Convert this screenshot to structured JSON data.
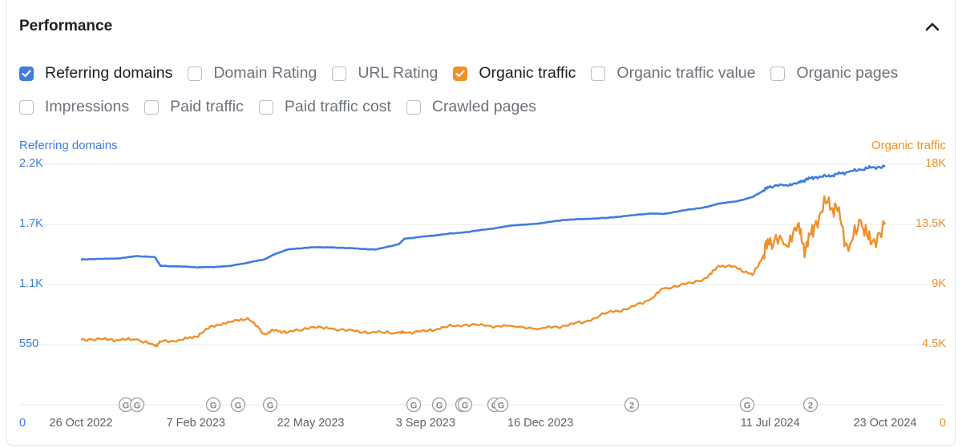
{
  "header": {
    "title": "Performance"
  },
  "toggles": {
    "row1": [
      {
        "label": "Referring domains",
        "checked": true,
        "color": "#3f7ddf"
      },
      {
        "label": "Domain Rating",
        "checked": false
      },
      {
        "label": "URL Rating",
        "checked": false
      },
      {
        "label": "Organic traffic",
        "checked": true,
        "color": "#f0902b"
      },
      {
        "label": "Organic traffic value",
        "checked": false
      },
      {
        "label": "Organic pages",
        "checked": false
      }
    ],
    "row2": [
      {
        "label": "Impressions",
        "checked": false
      },
      {
        "label": "Paid traffic",
        "checked": false
      },
      {
        "label": "Paid traffic cost",
        "checked": false
      },
      {
        "label": "Crawled pages",
        "checked": false
      }
    ]
  },
  "chart_data": {
    "type": "line",
    "left_axis_title": "Referring domains",
    "right_axis_title": "Organic traffic",
    "left_ticks": [
      "0",
      "550",
      "1.1K",
      "1.7K",
      "2.2K"
    ],
    "right_ticks": [
      "0",
      "4.5K",
      "9K",
      "13.5K",
      "18K"
    ],
    "left_range": [
      0,
      2200
    ],
    "right_range": [
      0,
      18000
    ],
    "x_ticks": [
      "26 Oct 2022",
      "7 Feb 2023",
      "22 May 2023",
      "3 Sep 2023",
      "16 Dec 2023",
      "11 Jul 2024",
      "23 Oct 2024"
    ],
    "grid": true,
    "x_dates": [
      "2022-10-26",
      "2022-11-15",
      "2022-12-01",
      "2022-12-15",
      "2023-01-01",
      "2023-01-06",
      "2023-01-25",
      "2023-02-07",
      "2023-02-22",
      "2023-03-10",
      "2023-03-26",
      "2023-04-10",
      "2023-04-20",
      "2023-05-01",
      "2023-05-22",
      "2023-06-10",
      "2023-07-01",
      "2023-07-20",
      "2023-08-10",
      "2023-08-15",
      "2023-09-03",
      "2023-09-20",
      "2023-10-10",
      "2023-11-01",
      "2023-11-20",
      "2023-12-16",
      "2024-01-05",
      "2024-01-25",
      "2024-02-15",
      "2024-03-05",
      "2024-03-25",
      "2024-04-05",
      "2024-04-25",
      "2024-05-15",
      "2024-05-25",
      "2024-06-10",
      "2024-06-25",
      "2024-07-05",
      "2024-07-11",
      "2024-07-25",
      "2024-08-05",
      "2024-08-12",
      "2024-08-20",
      "2024-09-01",
      "2024-09-10",
      "2024-09-20",
      "2024-10-01",
      "2024-10-10",
      "2024-10-23"
    ],
    "series": [
      {
        "name": "Referring domains",
        "color": "#3f7ddf",
        "values": [
          1330,
          1335,
          1340,
          1360,
          1350,
          1270,
          1265,
          1258,
          1260,
          1270,
          1300,
          1330,
          1380,
          1420,
          1440,
          1440,
          1430,
          1420,
          1470,
          1520,
          1540,
          1560,
          1580,
          1610,
          1640,
          1660,
          1690,
          1700,
          1710,
          1730,
          1750,
          1745,
          1780,
          1810,
          1840,
          1860,
          1900,
          1960,
          2000,
          2010,
          2030,
          2060,
          2080,
          2090,
          2110,
          2130,
          2150,
          2170,
          2180
        ]
      },
      {
        "name": "Organic traffic",
        "color": "#f0902b",
        "values": [
          4900,
          4900,
          4850,
          4900,
          4400,
          4700,
          4850,
          5100,
          5900,
          6200,
          6500,
          5300,
          5600,
          5400,
          5800,
          5700,
          5500,
          5400,
          5400,
          5400,
          5500,
          5800,
          6000,
          5900,
          5900,
          5700,
          5900,
          6200,
          6900,
          7200,
          7900,
          8700,
          9000,
          9500,
          10400,
          10300,
          9700,
          11200,
          12500,
          12000,
          13500,
          11600,
          13400,
          15200,
          14500,
          11500,
          13800,
          12000,
          13500
        ]
      }
    ],
    "markers": [
      "G",
      "G",
      "G",
      "G",
      "G",
      "G",
      "G",
      "G",
      "G",
      "G",
      "2",
      "G",
      "2"
    ]
  }
}
